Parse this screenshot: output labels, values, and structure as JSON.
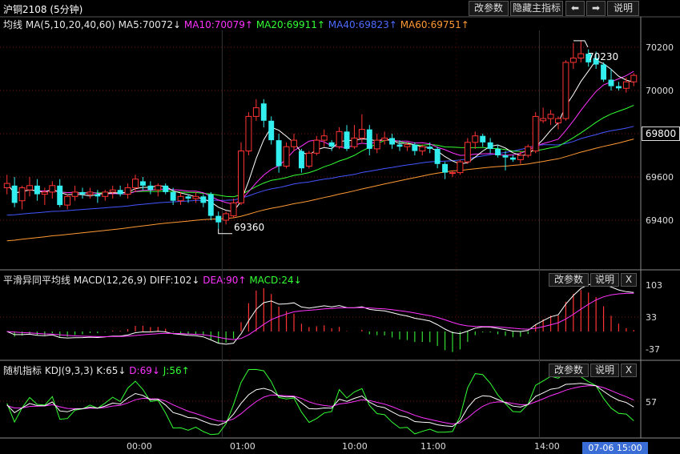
{
  "header": {
    "title": "沪铜2108 (5分钟)",
    "buttons": {
      "params": "改参数",
      "hide": "隐藏主指标",
      "left_icon": "arrow-left-icon",
      "right_icon": "arrow-right-icon",
      "help": "说明"
    }
  },
  "main_legend": {
    "name": "均线",
    "params": "MA(5,10,20,40,60)",
    "ma5": "MA5:70072↓",
    "ma10": "MA10:70079↑",
    "ma20": "MA20:69911↑",
    "ma40": "MA40:69823↑",
    "ma60": "MA60:69751↑"
  },
  "macd_legend": {
    "name": "平滑异同平均线",
    "params": "MACD(12,26,9)",
    "diff": "DIFF:102↓",
    "dea": "DEA:90↑",
    "macd": "MACD:24↓",
    "buttons": {
      "params": "改参数",
      "help": "说明",
      "close": "X"
    }
  },
  "kdj_legend": {
    "name": "随机指标",
    "params": "KDJ(9,3,3)",
    "k": "K:65↓",
    "d": "D:69↓",
    "j": "J:56↑",
    "buttons": {
      "params": "改参数",
      "help": "说明",
      "close": "X"
    }
  },
  "price_axis": {
    "ticks": [
      "70200",
      "70000",
      "69800",
      "69600",
      "69400"
    ],
    "current_price": "69800"
  },
  "macd_axis": {
    "ticks": [
      "103",
      "33",
      "-37"
    ]
  },
  "kdj_axis": {
    "ticks": [
      "57"
    ]
  },
  "time_axis": {
    "ticks": [
      "00:00",
      "01:00",
      "10:00",
      "11:00",
      "14:00"
    ],
    "cursor_time": "07-06 15:00"
  },
  "annotations": {
    "high": "70230",
    "low": "69360"
  },
  "colors": {
    "up": "#ff3333",
    "down": "#33eeee",
    "ma5": "#ffffff",
    "ma10": "#ff33ff",
    "ma20": "#33ff33",
    "ma40": "#4455ff",
    "ma60": "#ff9933"
  },
  "chart_data": {
    "type": "candlestick",
    "title": "沪铜2108 (5分钟)",
    "ylim": [
      69250,
      70300
    ],
    "candles": [
      {
        "o": 69550,
        "h": 69610,
        "l": 69520,
        "c": 69570
      },
      {
        "o": 69560,
        "h": 69600,
        "l": 69460,
        "c": 69480
      },
      {
        "o": 69490,
        "h": 69560,
        "l": 69450,
        "c": 69550
      },
      {
        "o": 69540,
        "h": 69600,
        "l": 69510,
        "c": 69560
      },
      {
        "o": 69560,
        "h": 69590,
        "l": 69490,
        "c": 69520
      },
      {
        "o": 69520,
        "h": 69550,
        "l": 69470,
        "c": 69530
      },
      {
        "o": 69530,
        "h": 69580,
        "l": 69500,
        "c": 69560
      },
      {
        "o": 69560,
        "h": 69590,
        "l": 69460,
        "c": 69470
      },
      {
        "o": 69470,
        "h": 69520,
        "l": 69450,
        "c": 69510
      },
      {
        "o": 69510,
        "h": 69560,
        "l": 69490,
        "c": 69530
      },
      {
        "o": 69530,
        "h": 69550,
        "l": 69500,
        "c": 69520
      },
      {
        "o": 69520,
        "h": 69550,
        "l": 69500,
        "c": 69530
      },
      {
        "o": 69520,
        "h": 69540,
        "l": 69480,
        "c": 69510
      },
      {
        "o": 69510,
        "h": 69540,
        "l": 69490,
        "c": 69530
      },
      {
        "o": 69530,
        "h": 69560,
        "l": 69500,
        "c": 69540
      },
      {
        "o": 69540,
        "h": 69560,
        "l": 69510,
        "c": 69520
      },
      {
        "o": 69520,
        "h": 69570,
        "l": 69500,
        "c": 69550
      },
      {
        "o": 69550,
        "h": 69610,
        "l": 69530,
        "c": 69590
      },
      {
        "o": 69580,
        "h": 69600,
        "l": 69540,
        "c": 69560
      },
      {
        "o": 69560,
        "h": 69580,
        "l": 69520,
        "c": 69540
      },
      {
        "o": 69540,
        "h": 69570,
        "l": 69510,
        "c": 69560
      },
      {
        "o": 69560,
        "h": 69570,
        "l": 69520,
        "c": 69530
      },
      {
        "o": 69530,
        "h": 69550,
        "l": 69470,
        "c": 69490
      },
      {
        "o": 69490,
        "h": 69530,
        "l": 69470,
        "c": 69510
      },
      {
        "o": 69510,
        "h": 69520,
        "l": 69480,
        "c": 69500
      },
      {
        "o": 69500,
        "h": 69530,
        "l": 69480,
        "c": 69510
      },
      {
        "o": 69510,
        "h": 69520,
        "l": 69460,
        "c": 69480
      },
      {
        "o": 69520,
        "h": 69530,
        "l": 69400,
        "c": 69420
      },
      {
        "o": 69420,
        "h": 69440,
        "l": 69360,
        "c": 69390
      },
      {
        "o": 69400,
        "h": 69440,
        "l": 69380,
        "c": 69430
      },
      {
        "o": 69420,
        "h": 69500,
        "l": 69410,
        "c": 69480
      },
      {
        "o": 69480,
        "h": 69760,
        "l": 69470,
        "c": 69720
      },
      {
        "o": 69720,
        "h": 69900,
        "l": 69700,
        "c": 69880
      },
      {
        "o": 69880,
        "h": 69960,
        "l": 69860,
        "c": 69920
      },
      {
        "o": 69940,
        "h": 69960,
        "l": 69830,
        "c": 69860
      },
      {
        "o": 69860,
        "h": 69880,
        "l": 69750,
        "c": 69770
      },
      {
        "o": 69770,
        "h": 69800,
        "l": 69620,
        "c": 69650
      },
      {
        "o": 69650,
        "h": 69760,
        "l": 69640,
        "c": 69740
      },
      {
        "o": 69740,
        "h": 69800,
        "l": 69720,
        "c": 69770
      },
      {
        "o": 69720,
        "h": 69730,
        "l": 69620,
        "c": 69640
      },
      {
        "o": 69650,
        "h": 69720,
        "l": 69640,
        "c": 69710
      },
      {
        "o": 69710,
        "h": 69790,
        "l": 69700,
        "c": 69770
      },
      {
        "o": 69770,
        "h": 69820,
        "l": 69740,
        "c": 69790
      },
      {
        "o": 69760,
        "h": 69770,
        "l": 69720,
        "c": 69740
      },
      {
        "o": 69740,
        "h": 69830,
        "l": 69730,
        "c": 69810
      },
      {
        "o": 69810,
        "h": 69840,
        "l": 69720,
        "c": 69730
      },
      {
        "o": 69740,
        "h": 69840,
        "l": 69730,
        "c": 69780
      },
      {
        "o": 69780,
        "h": 69890,
        "l": 69760,
        "c": 69820
      },
      {
        "o": 69820,
        "h": 69840,
        "l": 69700,
        "c": 69730
      },
      {
        "o": 69730,
        "h": 69800,
        "l": 69710,
        "c": 69770
      },
      {
        "o": 69770,
        "h": 69810,
        "l": 69750,
        "c": 69780
      },
      {
        "o": 69780,
        "h": 69800,
        "l": 69730,
        "c": 69750
      },
      {
        "o": 69750,
        "h": 69770,
        "l": 69720,
        "c": 69740
      },
      {
        "o": 69740,
        "h": 69760,
        "l": 69720,
        "c": 69750
      },
      {
        "o": 69750,
        "h": 69760,
        "l": 69700,
        "c": 69720
      },
      {
        "o": 69720,
        "h": 69750,
        "l": 69700,
        "c": 69740
      },
      {
        "o": 69740,
        "h": 69760,
        "l": 69710,
        "c": 69730
      },
      {
        "o": 69730,
        "h": 69740,
        "l": 69640,
        "c": 69660
      },
      {
        "o": 69660,
        "h": 69670,
        "l": 69590,
        "c": 69620
      },
      {
        "o": 69620,
        "h": 69630,
        "l": 69600,
        "c": 69620
      },
      {
        "o": 69620,
        "h": 69680,
        "l": 69610,
        "c": 69670
      },
      {
        "o": 69670,
        "h": 69780,
        "l": 69660,
        "c": 69760
      },
      {
        "o": 69760,
        "h": 69810,
        "l": 69730,
        "c": 69790
      },
      {
        "o": 69790,
        "h": 69800,
        "l": 69740,
        "c": 69760
      },
      {
        "o": 69760,
        "h": 69780,
        "l": 69710,
        "c": 69730
      },
      {
        "o": 69730,
        "h": 69750,
        "l": 69690,
        "c": 69700
      },
      {
        "o": 69700,
        "h": 69720,
        "l": 69630,
        "c": 69690
      },
      {
        "o": 69690,
        "h": 69700,
        "l": 69670,
        "c": 69680
      },
      {
        "o": 69680,
        "h": 69720,
        "l": 69660,
        "c": 69700
      },
      {
        "o": 69700,
        "h": 69750,
        "l": 69690,
        "c": 69740
      },
      {
        "o": 69720,
        "h": 69900,
        "l": 69710,
        "c": 69880
      },
      {
        "o": 69860,
        "h": 69920,
        "l": 69850,
        "c": 69870
      },
      {
        "o": 69870,
        "h": 69910,
        "l": 69840,
        "c": 69890
      },
      {
        "o": 69850,
        "h": 69880,
        "l": 69820,
        "c": 69870
      },
      {
        "o": 69870,
        "h": 70140,
        "l": 69860,
        "c": 70130
      },
      {
        "o": 70130,
        "h": 70220,
        "l": 70100,
        "c": 70150
      },
      {
        "o": 70150,
        "h": 70230,
        "l": 70130,
        "c": 70170
      },
      {
        "o": 70170,
        "h": 70190,
        "l": 70110,
        "c": 70130
      },
      {
        "o": 70150,
        "h": 70180,
        "l": 70100,
        "c": 70120
      },
      {
        "o": 70120,
        "h": 70130,
        "l": 70040,
        "c": 70050
      },
      {
        "o": 70050,
        "h": 70100,
        "l": 70000,
        "c": 70020
      },
      {
        "o": 70020,
        "h": 70040,
        "l": 70000,
        "c": 70010
      },
      {
        "o": 70010,
        "h": 70060,
        "l": 69990,
        "c": 70040
      },
      {
        "o": 70040,
        "h": 70080,
        "l": 70020,
        "c": 70070
      }
    ]
  }
}
